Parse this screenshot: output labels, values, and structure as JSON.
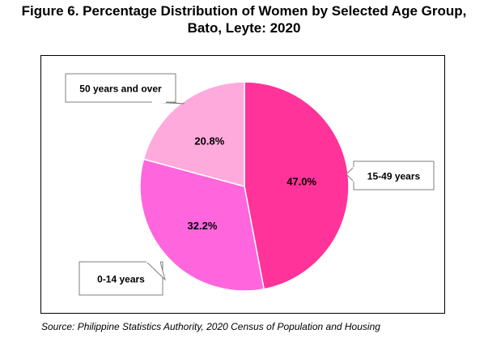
{
  "title": {
    "line1": "Figure 6. Percentage Distribution of Women by Selected Age Group,",
    "line2": "Bato, Leyte: 2020"
  },
  "source": "Source: Philippine Statistics Authority, 2020 Census of Population and Housing",
  "chart_data": {
    "type": "pie",
    "title": "Figure 6. Percentage Distribution of Women by Selected Age Group, Bato, Leyte: 2020",
    "categories": [
      "15-49 years",
      "0-14 years",
      "50 years and over"
    ],
    "values": [
      47.0,
      32.2,
      20.8
    ],
    "value_labels": [
      "47.0%",
      "32.2%",
      "20.8%"
    ],
    "colors": [
      "#ff3399",
      "#ff66dd",
      "#ffaadd"
    ],
    "start": "12 o'clock, clockwise",
    "labels": "callout boxes"
  }
}
